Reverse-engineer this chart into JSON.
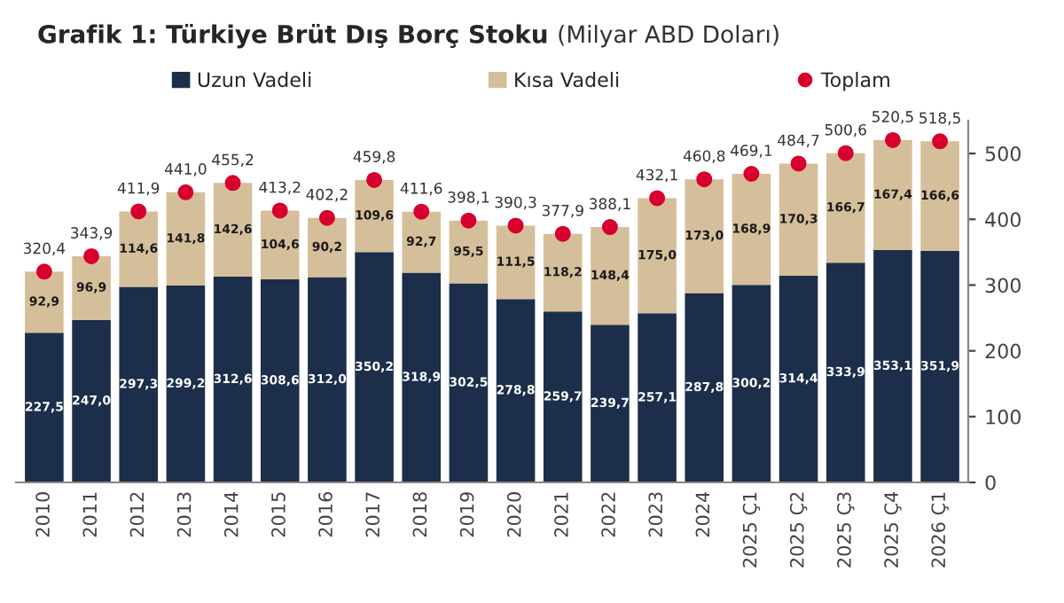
{
  "chart_data": {
    "type": "bar",
    "stacked": true,
    "title": "Grafik 1: Türkiye Brüt Dış Borç Stoku",
    "subtitle": "(Milyar ABD Doları)",
    "categories": [
      "2010",
      "2011",
      "2012",
      "2013",
      "2014",
      "2015",
      "2016",
      "2017",
      "2018",
      "2019",
      "2020",
      "2021",
      "2022",
      "2023",
      "2024",
      "2025 Ç1",
      "2025 Ç2",
      "2025 Ç3",
      "2025 Ç4",
      "2026 Ç1"
    ],
    "series": [
      {
        "name": "Uzun Vadeli",
        "color": "#1c2e4a",
        "values": [
          227.5,
          247.0,
          297.3,
          299.2,
          312.6,
          308.6,
          312.0,
          350.2,
          318.9,
          302.5,
          278.8,
          259.7,
          239.7,
          257.1,
          287.8,
          300.2,
          314.4,
          333.9,
          353.1,
          351.9
        ],
        "value_labels": [
          "227,5",
          "247,0",
          "297,3",
          "299,2",
          "312,6",
          "308,6",
          "312,0",
          "350,2",
          "318,9",
          "302,5",
          "278,8",
          "259,7",
          "239,7",
          "257,1",
          "287,8",
          "300,2",
          "314,4",
          "333,9",
          "353,1",
          "351,9"
        ]
      },
      {
        "name": "Kısa Vadeli",
        "color": "#d5bf9a",
        "values": [
          92.9,
          96.9,
          114.6,
          141.8,
          142.6,
          104.6,
          90.2,
          109.6,
          92.7,
          95.5,
          111.5,
          118.2,
          148.4,
          175.0,
          173.0,
          168.9,
          170.3,
          166.7,
          167.4,
          166.6
        ],
        "value_labels": [
          "92,9",
          "96,9",
          "114,6",
          "141,8",
          "142,6",
          "104,6",
          "90,2",
          "109,6",
          "92,7",
          "95,5",
          "111,5",
          "118,2",
          "148,4",
          "175,0",
          "173,0",
          "168,9",
          "170,3",
          "166,7",
          "167,4",
          "166,6"
        ]
      },
      {
        "name": "Toplam",
        "type": "scatter",
        "marker": "circle",
        "color": "#d7002e",
        "values": [
          320.4,
          343.9,
          411.9,
          441.0,
          455.2,
          413.2,
          402.2,
          459.8,
          411.6,
          398.1,
          390.3,
          377.9,
          388.1,
          432.1,
          460.8,
          469.1,
          484.7,
          500.6,
          520.5,
          518.5
        ],
        "value_labels": [
          "320,4",
          "343,9",
          "411,9",
          "441,0",
          "455,2",
          "413,2",
          "402,2",
          "459,8",
          "411,6",
          "398,1",
          "390,3",
          "377,9",
          "388,1",
          "432,1",
          "460,8",
          "469,1",
          "484,7",
          "500,6",
          "520,5",
          "518,5"
        ]
      }
    ],
    "ylim": [
      0,
      550
    ],
    "yticks": [
      0,
      100,
      200,
      300,
      400,
      500
    ],
    "grid": false,
    "legend": "top"
  }
}
